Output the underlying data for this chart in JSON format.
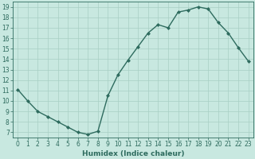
{
  "x": [
    0,
    1,
    2,
    3,
    4,
    5,
    6,
    7,
    8,
    9,
    10,
    11,
    12,
    13,
    14,
    15,
    16,
    17,
    18,
    19,
    20,
    21,
    22,
    23
  ],
  "y": [
    11.1,
    10.0,
    9.0,
    8.5,
    8.0,
    7.5,
    7.0,
    6.8,
    7.1,
    10.5,
    12.5,
    13.9,
    15.2,
    16.5,
    17.3,
    17.0,
    18.5,
    18.7,
    19.0,
    18.8,
    17.5,
    16.5,
    15.1,
    13.8
  ],
  "line_color": "#2e6b5e",
  "marker": "D",
  "marker_size": 2.0,
  "bg_color": "#c8e8e0",
  "grid_color": "#a8cfc4",
  "xlabel": "Humidex (Indice chaleur)",
  "xlim": [
    -0.5,
    23.5
  ],
  "ylim": [
    6.5,
    19.5
  ],
  "yticks": [
    7,
    8,
    9,
    10,
    11,
    12,
    13,
    14,
    15,
    16,
    17,
    18,
    19
  ],
  "xticks": [
    0,
    1,
    2,
    3,
    4,
    5,
    6,
    7,
    8,
    9,
    10,
    11,
    12,
    13,
    14,
    15,
    16,
    17,
    18,
    19,
    20,
    21,
    22,
    23
  ],
  "xtick_labels": [
    "0",
    "1",
    "2",
    "3",
    "4",
    "5",
    "6",
    "7",
    "8",
    "9",
    "10",
    "11",
    "12",
    "13",
    "14",
    "15",
    "16",
    "17",
    "18",
    "19",
    "20",
    "21",
    "22",
    "23"
  ],
  "tick_color": "#2e6b5e",
  "label_color": "#2e6b5e",
  "line_width": 1.0,
  "xlabel_fontsize": 6.5,
  "tick_fontsize": 5.5
}
